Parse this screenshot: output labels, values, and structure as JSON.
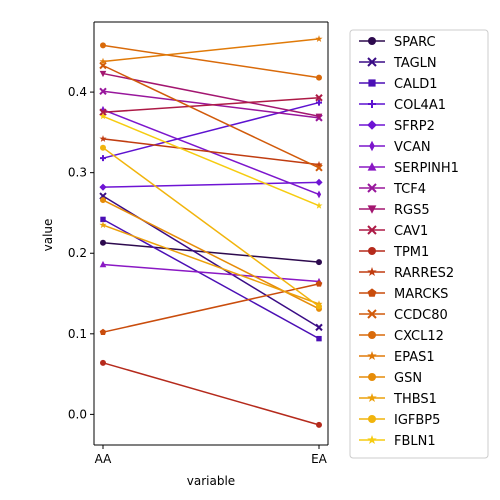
{
  "chart_data": {
    "type": "line",
    "xlabel": "variable",
    "ylabel": "value",
    "categories": [
      "AA",
      "EA"
    ],
    "ylim": [
      -0.038,
      0.487
    ],
    "yticks": [
      0.0,
      0.1,
      0.2,
      0.3,
      0.4
    ],
    "ytick_labels": [
      "0.0",
      "0.1",
      "0.2",
      "0.3",
      "0.4"
    ],
    "legend_position": "outside-right",
    "series": [
      {
        "name": "SPARC",
        "values": [
          0.213,
          0.189
        ],
        "color": "#2d0a4e",
        "marker": "circle"
      },
      {
        "name": "TAGLN",
        "values": [
          0.271,
          0.108
        ],
        "color": "#3a0c85",
        "marker": "x"
      },
      {
        "name": "CALD1",
        "values": [
          0.242,
          0.094
        ],
        "color": "#4b0fb5",
        "marker": "square"
      },
      {
        "name": "COL4A1",
        "values": [
          0.318,
          0.387
        ],
        "color": "#5d12d0",
        "marker": "plus"
      },
      {
        "name": "SFRP2",
        "values": [
          0.282,
          0.288
        ],
        "color": "#6e14d4",
        "marker": "diamond"
      },
      {
        "name": "VCAN",
        "values": [
          0.378,
          0.273
        ],
        "color": "#7c16cc",
        "marker": "thin_diamond"
      },
      {
        "name": "SERPINH1",
        "values": [
          0.186,
          0.165
        ],
        "color": "#8a18c4",
        "marker": "triangle"
      },
      {
        "name": "TCF4",
        "values": [
          0.401,
          0.368
        ],
        "color": "#98169c",
        "marker": "x"
      },
      {
        "name": "RGS5",
        "values": [
          0.423,
          0.37
        ],
        "color": "#a31670",
        "marker": "triangle_down"
      },
      {
        "name": "CAV1",
        "values": [
          0.375,
          0.393
        ],
        "color": "#ad1a46",
        "marker": "x"
      },
      {
        "name": "TPM1",
        "values": [
          0.064,
          -0.013
        ],
        "color": "#b52a1c",
        "marker": "circle"
      },
      {
        "name": "RARRES2",
        "values": [
          0.342,
          0.31
        ],
        "color": "#c03c10",
        "marker": "star"
      },
      {
        "name": "MARCKS",
        "values": [
          0.102,
          0.162
        ],
        "color": "#c94c0c",
        "marker": "pentagon"
      },
      {
        "name": "CCDC80",
        "values": [
          0.433,
          0.306
        ],
        "color": "#d15a0a",
        "marker": "x"
      },
      {
        "name": "CXCL12",
        "values": [
          0.458,
          0.418
        ],
        "color": "#d96a0a",
        "marker": "circle"
      },
      {
        "name": "EPAS1",
        "values": [
          0.438,
          0.466
        ],
        "color": "#e07a08",
        "marker": "star"
      },
      {
        "name": "GSN",
        "values": [
          0.266,
          0.131
        ],
        "color": "#e68c08",
        "marker": "circle"
      },
      {
        "name": "THBS1",
        "values": [
          0.235,
          0.137
        ],
        "color": "#eca00a",
        "marker": "star"
      },
      {
        "name": "IGFBP5",
        "values": [
          0.331,
          0.134
        ],
        "color": "#f1b40c",
        "marker": "circle"
      },
      {
        "name": "FBLN1",
        "values": [
          0.37,
          0.259
        ],
        "color": "#f6cc10",
        "marker": "star"
      }
    ]
  }
}
